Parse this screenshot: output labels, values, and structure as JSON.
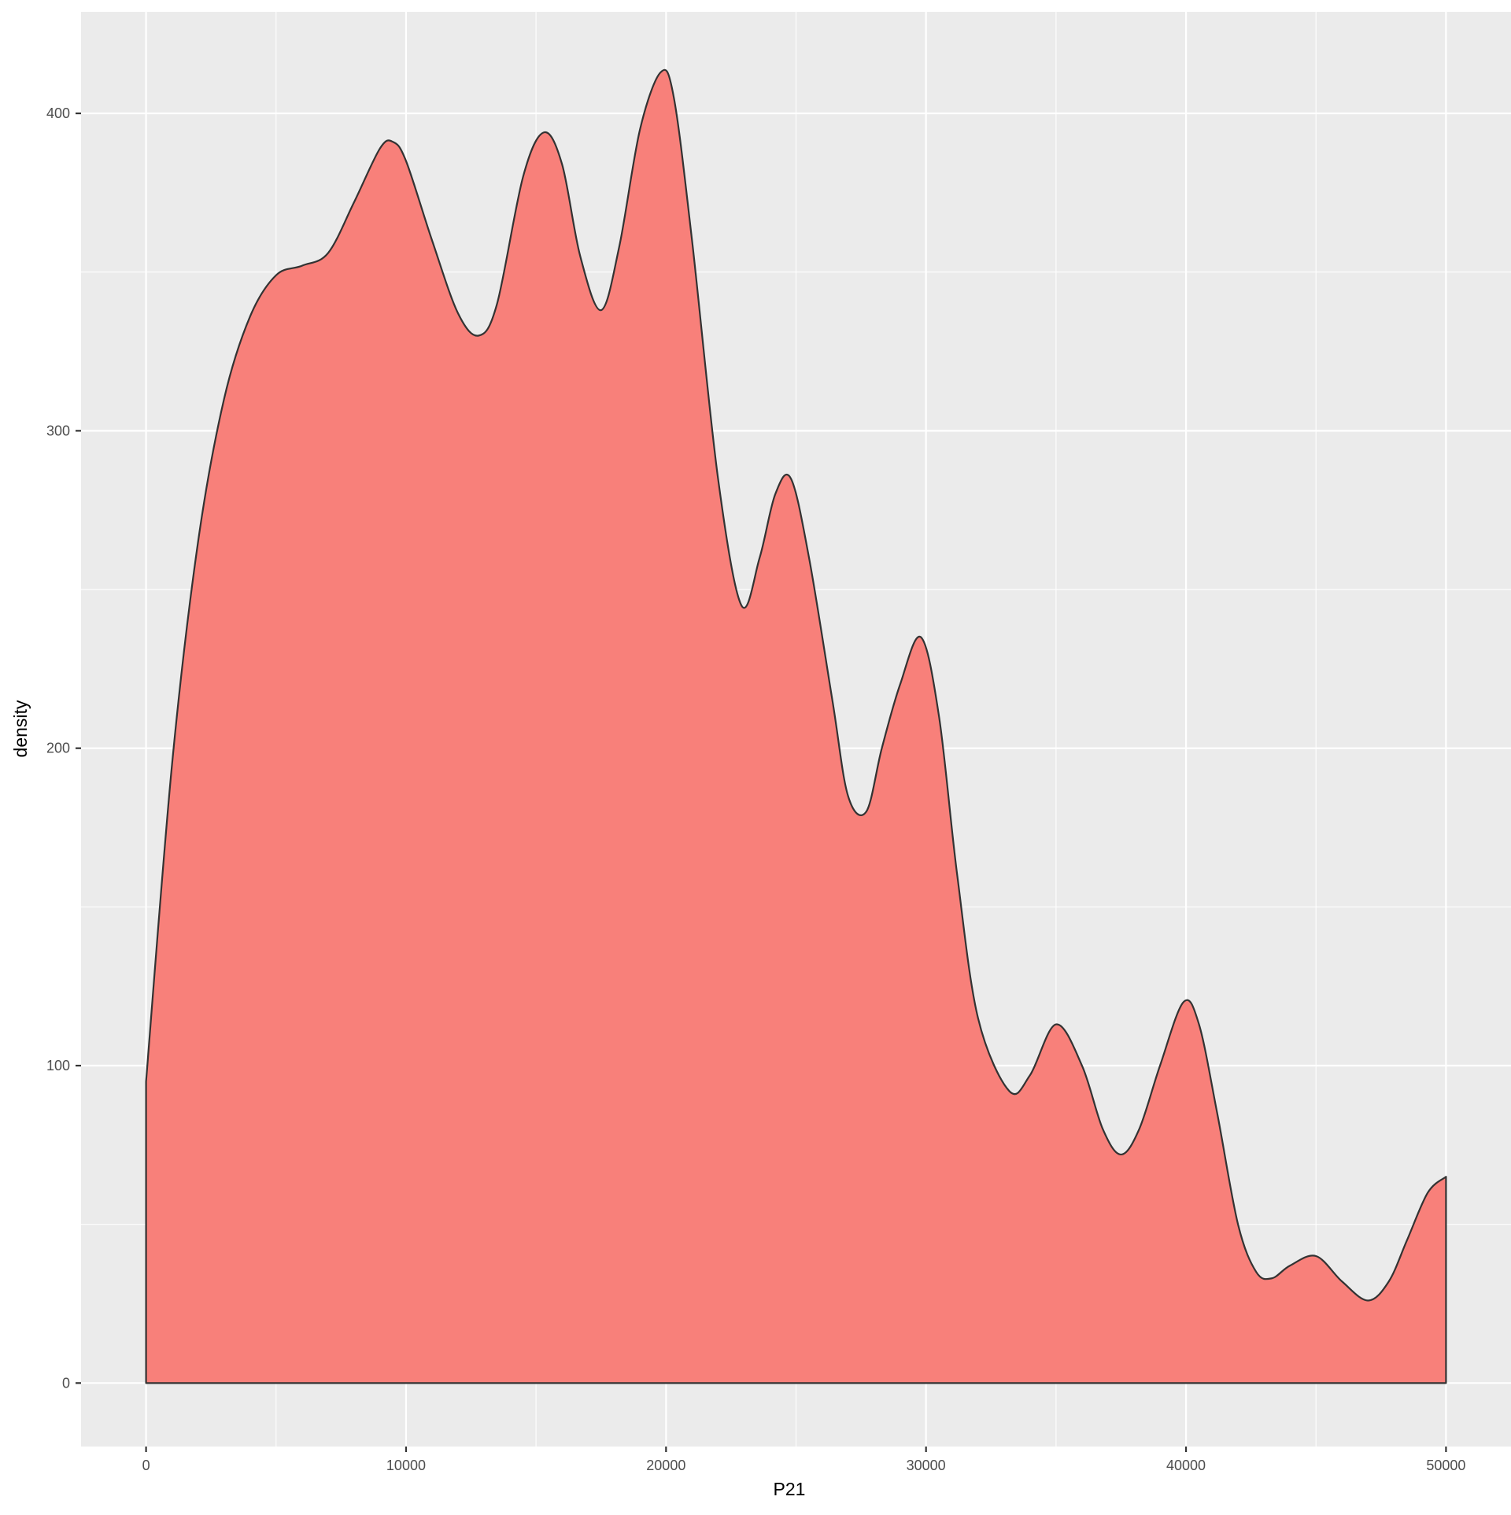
{
  "chart_data": {
    "type": "area",
    "title": "",
    "xlabel": "P21",
    "ylabel": "density",
    "xlim": [
      -2500,
      52500
    ],
    "ylim": [
      -20,
      432
    ],
    "x_ticks": [
      0,
      10000,
      20000,
      30000,
      40000,
      50000
    ],
    "x_tick_labels": [
      "0",
      "10000",
      "20000",
      "30000",
      "40000",
      "50000"
    ],
    "y_ticks": [
      0,
      100,
      200,
      300,
      400
    ],
    "y_tick_labels": [
      "0",
      "100",
      "200",
      "300",
      "400"
    ],
    "grid": true,
    "legend": "none",
    "colors": {
      "panel_background": "#ebebeb",
      "grid_line": "#ffffff",
      "fill": "#f8807a",
      "outline": "#333333",
      "tick_text": "#4d4d4d",
      "axis_title": "#000000"
    },
    "series": [
      {
        "x": [
          0,
          1000,
          2000,
          3000,
          4000,
          5000,
          6000,
          7000,
          8000,
          9000,
          9500,
          10000,
          11000,
          12000,
          12800,
          13500,
          14500,
          15300,
          16000,
          16700,
          17500,
          18200,
          19000,
          19800,
          20300,
          21000,
          22000,
          22900,
          23600,
          24200,
          24800,
          25500,
          26400,
          27000,
          27700,
          28300,
          29000,
          29800,
          30500,
          31200,
          32000,
          33200,
          34000,
          35000,
          36000,
          36800,
          37500,
          38200,
          39000,
          39900,
          40500,
          41200,
          42000,
          42700,
          43300,
          44000,
          45000,
          46000,
          47000,
          47800,
          48500,
          49300,
          50000
        ],
        "y": [
          95,
          195,
          265,
          310,
          336,
          349,
          352,
          356,
          372,
          389,
          391,
          385,
          360,
          337,
          330,
          340,
          380,
          394,
          384,
          355,
          338,
          358,
          395,
          413,
          405,
          360,
          285,
          245,
          260,
          280,
          285,
          260,
          215,
          185,
          180,
          200,
          220,
          235,
          210,
          160,
          115,
          92,
          97,
          113,
          100,
          80,
          72,
          80,
          100,
          120,
          113,
          85,
          50,
          35,
          33,
          37,
          40,
          32,
          26,
          32,
          45,
          60,
          65
        ]
      }
    ]
  }
}
